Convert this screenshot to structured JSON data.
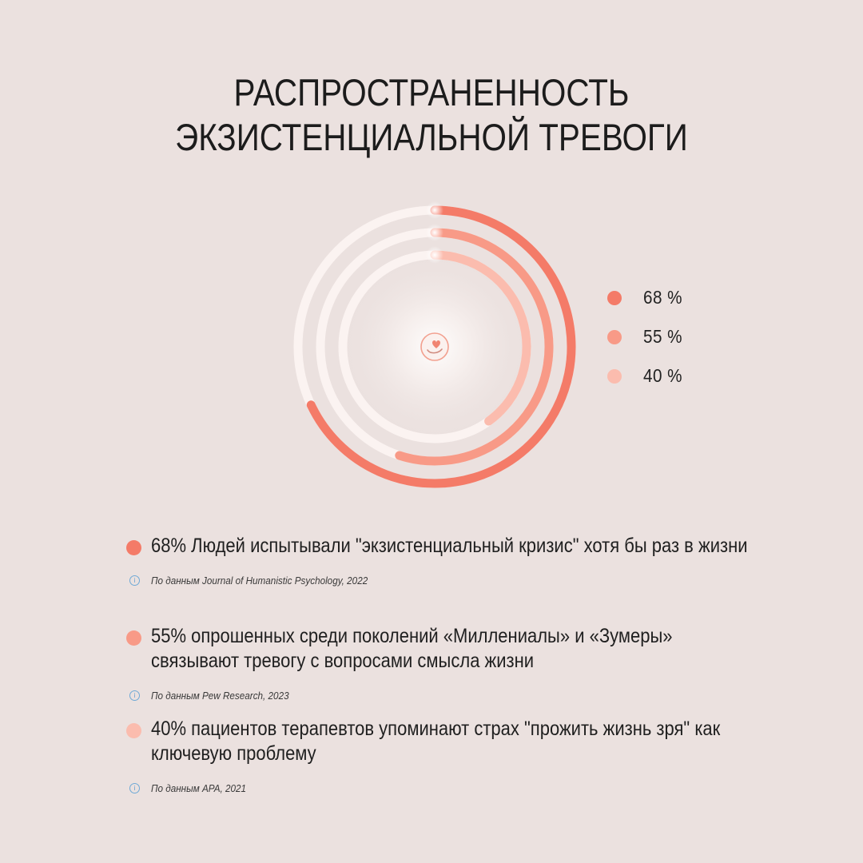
{
  "title": {
    "line1": "РАСПРОСТРАНЕННОСТЬ",
    "line2": "ЭКЗИСТЕНЦИАЛЬНОЙ ТРЕВОГИ"
  },
  "chart_data": {
    "type": "radial-bar",
    "max": 100,
    "series": [
      {
        "label": "68 %",
        "value": 68,
        "color": "#f47b68"
      },
      {
        "label": "55 %",
        "value": 55,
        "color": "#f89a87"
      },
      {
        "label": "40 %",
        "value": 40,
        "color": "#fbbcae"
      }
    ],
    "track_color": "#fbf3f1",
    "legend_position": "right",
    "center_icon": "heart-in-hand-icon"
  },
  "facts": [
    {
      "text": "68% Людей испытывали \"экзистенциальный кризис\" хотя бы раз в жизни",
      "source": "По данным Journal of Humanistic Psychology, 2022",
      "color": "#f47b68"
    },
    {
      "text": "55% опрошенных среди поколений «Миллениалы» и «Зумеры» связывают тревогу с вопросами смысла жизни",
      "source": "По данным Pew Research, 2023",
      "color": "#f89a87"
    },
    {
      "text": "40% пациентов терапевтов упоминают страх \"прожить жизнь зря\" как ключевую проблему",
      "source": "По данным APA, 2021",
      "color": "#fbbcae"
    }
  ],
  "source_icon": "info-icon",
  "colors": {
    "background": "#ebe1df",
    "accent": "#f47b68"
  }
}
